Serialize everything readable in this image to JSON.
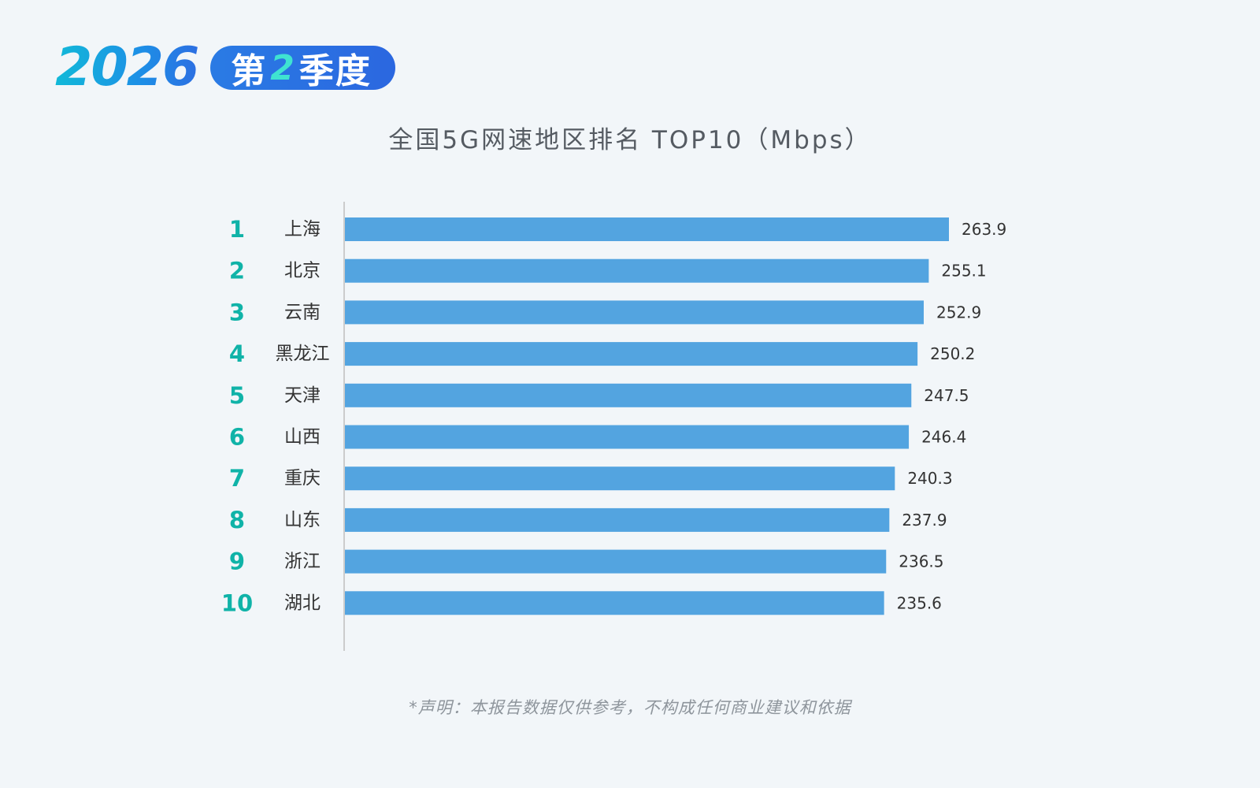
{
  "header": {
    "year": "2026",
    "quarter_prefix": "第",
    "quarter_num": "2",
    "quarter_suffix": "季度"
  },
  "footer": {
    "disclaimer": "*声明：本报告数据仅供参考，不构成任何商业建议和依据"
  },
  "colors": {
    "bar": "#53a4e0",
    "rank": "#10b3a8",
    "label": "#333333",
    "value": "#333333",
    "axis": "#cccccc"
  },
  "chart_data": {
    "type": "bar",
    "orientation": "horizontal",
    "title": "全国5G网速地区排名 TOP10（Mbps）",
    "ranks": [
      "1",
      "2",
      "3",
      "4",
      "5",
      "6",
      "7",
      "8",
      "9",
      "10"
    ],
    "categories": [
      "上海",
      "北京",
      "云南",
      "黑龙江",
      "天津",
      "山西",
      "重庆",
      "山东",
      "浙江",
      "湖北"
    ],
    "values": [
      263.9,
      255.1,
      252.9,
      250.2,
      247.5,
      246.4,
      240.3,
      237.9,
      236.5,
      235.6
    ],
    "xlim": [
      0,
      263.9
    ],
    "grid": false,
    "legend": "none"
  }
}
